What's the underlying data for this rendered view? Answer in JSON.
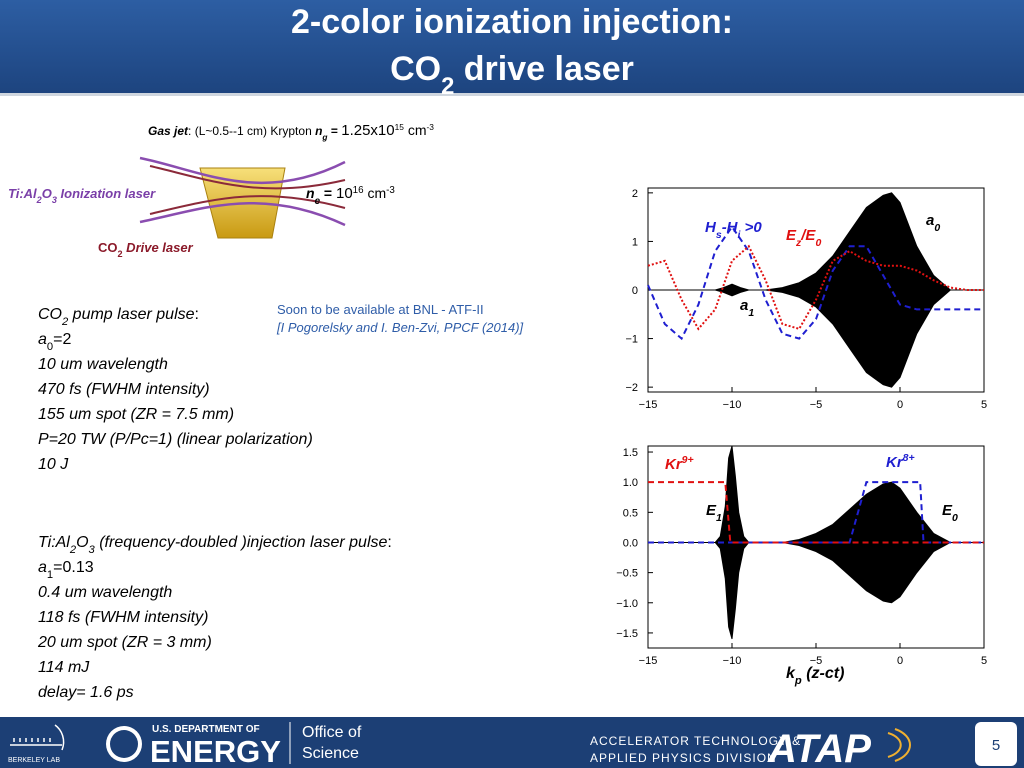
{
  "header": {
    "title": [
      {
        "text": "2-color ionization injection:"
      }
    ],
    "subtitle": [
      {
        "text": "CO"
      },
      {
        "sub": "2"
      },
      {
        "text": " drive laser"
      }
    ]
  },
  "gas_jet": [
    {
      "text": "Gas jet"
    },
    {
      "text": ": (L~0.5--1 cm) Krypton   "
    },
    {
      "text": "n"
    },
    {
      "sub": "g"
    },
    {
      "text": " = "
    },
    {
      "text": "1.25x10"
    },
    {
      "sup": "15"
    },
    {
      "text": " cm"
    },
    {
      "sup": "-3"
    }
  ],
  "diagram": {
    "ionization_laser": [
      {
        "text": "Ti:Al"
      },
      {
        "sub": "2"
      },
      {
        "text": "O"
      },
      {
        "sub": "3"
      },
      {
        "text": " Ionization laser"
      }
    ],
    "drive_laser": [
      {
        "text": "CO"
      },
      {
        "sub": "2"
      },
      {
        "text": " Drive laser"
      }
    ],
    "density": [
      {
        "text": "n"
      },
      {
        "sub": "e"
      },
      {
        "text": " = "
      },
      {
        "text": "10"
      },
      {
        "sup": "16"
      },
      {
        "text": " cm"
      },
      {
        "sup": "-3"
      }
    ]
  },
  "note": {
    "availability": [
      {
        "text": "Soon to be available at BNL - ATF-II"
      }
    ],
    "reference": [
      {
        "text": "[I Pogorelsky and I. Ben-Zvi, PPCF (2014)]"
      }
    ]
  },
  "pump_pulse": {
    "heading": [
      {
        "text": "CO"
      },
      {
        "sub": "2"
      },
      {
        "text": " pump laser pulse"
      },
      {
        "text": ":"
      }
    ],
    "lines": [
      [
        {
          "text": "a"
        },
        {
          "sub": "0"
        },
        {
          "text": "=2"
        }
      ],
      [
        {
          "text": "10 um wavelength"
        }
      ],
      [
        {
          "text": "470 fs (FWHM intensity)"
        }
      ],
      [
        {
          "text": "155 um spot (ZR = 7.5 mm)"
        }
      ],
      [
        {
          "text": "P=20 TW  (P/Pc=1) (linear polarization)"
        }
      ],
      [
        {
          "text": "10 J"
        }
      ]
    ]
  },
  "injection_pulse": {
    "heading": [
      {
        "text": "Ti:Al"
      },
      {
        "sub": "2"
      },
      {
        "text": "O"
      },
      {
        "sub": "3"
      },
      {
        "text": " (frequency-doubled )injection laser pulse"
      },
      {
        "text": ":"
      }
    ],
    "lines": [
      [
        {
          "text": "a"
        },
        {
          "sub": "1"
        },
        {
          "text": "=0.13"
        }
      ],
      [
        {
          "text": "0.4 um wavelength"
        }
      ],
      [
        {
          "text": "118 fs (FWHM intensity)"
        }
      ],
      [
        {
          "text": "20 um spot (ZR = 3 mm)"
        }
      ],
      [
        {
          "text": "114 mJ"
        }
      ],
      [
        {
          "text": "delay= 1.6 ps"
        }
      ]
    ]
  },
  "footer": {
    "lab": [
      {
        "text": "BERKELEY LAB"
      }
    ],
    "doe_top": [
      {
        "text": "U.S. DEPARTMENT OF"
      }
    ],
    "doe_main": [
      {
        "text": "ENERGY"
      }
    ],
    "office_1": [
      {
        "text": "Office of"
      }
    ],
    "office_2": [
      {
        "text": "Science"
      }
    ],
    "division_1": [
      {
        "text": "ACCELERATOR TECHNOLOGY &"
      }
    ],
    "division_2": [
      {
        "text": "APPLIED PHYSICS DIVISION"
      }
    ],
    "atap": [
      {
        "text": "ATAP"
      }
    ],
    "page": [
      {
        "text": "5"
      }
    ]
  },
  "chart_data": [
    {
      "type": "line",
      "xlim": [
        -15,
        5
      ],
      "xticks": [
        {
          "value": -15,
          "label": "−15"
        },
        {
          "value": -10,
          "label": "−10"
        },
        {
          "value": -5,
          "label": "−5"
        },
        0,
        5
      ],
      "ylim": [
        -2.1,
        2.1
      ],
      "yticks": [
        {
          "value": -2,
          "label": "−2"
        },
        {
          "value": -1,
          "label": "−1"
        },
        0,
        1,
        2
      ],
      "annotations": [
        [
          {
            "text": "H"
          },
          {
            "sub": "s"
          },
          {
            "text": "-H"
          },
          {
            "sub": "i"
          },
          {
            "text": " >0"
          }
        ],
        [
          {
            "text": "E"
          },
          {
            "sub": "z"
          },
          {
            "text": "/E"
          },
          {
            "sub": "0"
          }
        ],
        [
          {
            "text": "a"
          },
          {
            "sub": "0"
          }
        ],
        [
          {
            "text": "a"
          },
          {
            "sub": "1"
          }
        ]
      ],
      "series": [
        {
          "color": "#000000",
          "style": "envelope",
          "x": [
            -15,
            -11,
            -10.5,
            -10,
            -9.5,
            -9,
            -8,
            -7,
            -6,
            -5,
            -4,
            -3,
            -2,
            -1,
            -0.5,
            0,
            1,
            2,
            3,
            5
          ],
          "values": [
            0,
            0,
            0.05,
            0.12,
            0.05,
            0,
            0,
            0.05,
            0.15,
            0.35,
            0.7,
            1.2,
            1.7,
            1.95,
            2,
            1.8,
            0.9,
            0.3,
            0,
            0
          ]
        },
        {
          "color": "#1f1fd0",
          "style": "dashed",
          "x": [
            -15,
            -14,
            -13,
            -12,
            -11,
            -10,
            -9,
            -8,
            -7,
            -6,
            -5,
            -4,
            -3,
            -2,
            -1,
            0,
            1,
            2,
            3,
            4,
            5
          ],
          "values": [
            0.1,
            -0.7,
            -1,
            -0.3,
            0.8,
            1.3,
            0.8,
            -0.2,
            -0.9,
            -1,
            -0.6,
            0.4,
            0.9,
            0.9,
            0.3,
            -0.3,
            -0.4,
            -0.4,
            -0.4,
            -0.4,
            -0.4
          ]
        },
        {
          "color": "#e01010",
          "style": "dotted",
          "x": [
            -15,
            -14,
            -13,
            -12,
            -11,
            -10,
            -9,
            -8,
            -7,
            -6,
            -5,
            -4,
            -3,
            -2,
            -1,
            0,
            1,
            2,
            3,
            4,
            5
          ],
          "values": [
            0.5,
            0.6,
            -0.2,
            -0.8,
            -0.4,
            0.6,
            0.9,
            0.2,
            -0.7,
            -0.8,
            -0.2,
            0.6,
            0.8,
            0.6,
            0.5,
            0.5,
            0.4,
            0.2,
            0.05,
            0,
            0
          ]
        }
      ]
    },
    {
      "type": "line",
      "xlim": [
        -15,
        5
      ],
      "xticks": [
        {
          "value": -15,
          "label": "−15"
        },
        {
          "value": -10,
          "label": "−10"
        },
        {
          "value": -5,
          "label": "−5"
        },
        0,
        5
      ],
      "ylim": [
        -1.75,
        1.6
      ],
      "yticks": [
        1.5,
        {
          "value": 1,
          "label": "1.0"
        },
        0.5,
        {
          "value": 0,
          "label": "0.0"
        },
        {
          "value": -0.5,
          "label": "−0.5"
        },
        {
          "value": -1,
          "label": "−1.0"
        },
        {
          "value": -1.5,
          "label": "−1.5"
        }
      ],
      "xlabel": [
        {
          "text": "k"
        },
        {
          "sub": "p"
        },
        {
          "text": " (z-ct)"
        }
      ],
      "annotations": [
        [
          {
            "text": "Kr"
          },
          {
            "sup": "9+"
          }
        ],
        [
          {
            "text": "Kr"
          },
          {
            "sup": "8+"
          }
        ],
        [
          {
            "text": "E"
          },
          {
            "sub": "1"
          }
        ],
        [
          {
            "text": "E"
          },
          {
            "sub": "0"
          }
        ]
      ],
      "series": [
        {
          "color": "#000000",
          "style": "envelope",
          "x": [
            -15,
            -11,
            -10.7,
            -10.4,
            -10.2,
            -10,
            -9.8,
            -9.6,
            -9.3,
            -9,
            -7,
            -6,
            -5,
            -4,
            -3,
            -2,
            -1,
            -0.5,
            0,
            1,
            2,
            3,
            5
          ],
          "values": [
            0,
            0,
            0.1,
            0.6,
            1.4,
            1.6,
            1.1,
            0.5,
            0.1,
            0,
            0,
            0.05,
            0.15,
            0.3,
            0.55,
            0.8,
            0.97,
            1,
            0.9,
            0.5,
            0.15,
            0,
            0
          ]
        },
        {
          "color": "#1f1fd0",
          "style": "dashed",
          "x": [
            -15,
            -3,
            -2,
            1.2,
            1.4,
            5
          ],
          "values": [
            0,
            0,
            1,
            1,
            0,
            0
          ]
        },
        {
          "color": "#e01010",
          "style": "dashed",
          "x": [
            -15,
            -10.4,
            -10.1,
            5
          ],
          "values": [
            1,
            1,
            0,
            0
          ]
        }
      ]
    }
  ]
}
